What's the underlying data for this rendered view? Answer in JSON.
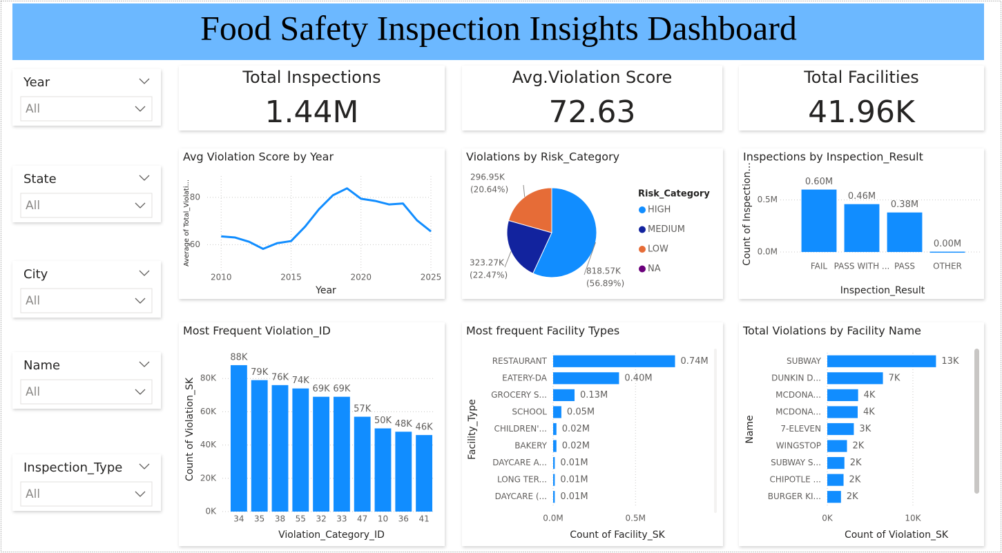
{
  "header": {
    "title": "Food Safety Inspection Insights Dashboard"
  },
  "slicers": [
    {
      "label": "Year",
      "value": "All"
    },
    {
      "label": "State",
      "value": "All"
    },
    {
      "label": "City",
      "value": "All"
    },
    {
      "label": "Name",
      "value": "All"
    },
    {
      "label": "Inspection_Type",
      "value": "All"
    }
  ],
  "kpis": [
    {
      "title": "Total Inspections",
      "value": "1.44M"
    },
    {
      "title": "Avg.Violation Score",
      "value": "72.63"
    },
    {
      "title": "Total Facilities",
      "value": "41.96K"
    }
  ],
  "chart_data": [
    {
      "type": "line",
      "title": "Avg Violation Score by Year",
      "x_label": "Year",
      "y_label": "Average of Total_Violati...",
      "x": [
        2010,
        2011,
        2012,
        2013,
        2014,
        2015,
        2016,
        2017,
        2018,
        2019,
        2020,
        2021,
        2022,
        2023,
        2024,
        2025
      ],
      "values": [
        63.5,
        63,
        61.2,
        58.2,
        60.6,
        61.5,
        67.6,
        75,
        80.9,
        83.8,
        79.4,
        78.5,
        77,
        77.4,
        70.3,
        65.6
      ],
      "color": "#118DFF",
      "xlim": [
        2009,
        2025
      ],
      "xticks": [
        2010,
        2015,
        2020,
        2025
      ],
      "ylim": [
        49,
        89
      ],
      "yticks": [
        60,
        80
      ],
      "grid": true
    },
    {
      "type": "pie",
      "title": "Violations by Risk_Category",
      "legend_title": "Risk_Category",
      "categories": [
        "HIGH",
        "MEDIUM",
        "LOW",
        "NA"
      ],
      "values": [
        818570,
        323270,
        296950,
        0
      ],
      "value_labels": [
        "818.57K",
        "323.27K",
        "296.95K",
        null
      ],
      "percents": [
        56.89,
        22.47,
        20.64,
        0
      ],
      "percent_labels": [
        "(56.89%)",
        "(22.47%)",
        "(20.64%)",
        null
      ],
      "colors": [
        "#118DFF",
        "#12239E",
        "#E66C37",
        "#6B007B"
      ],
      "legend": "right"
    },
    {
      "type": "bar",
      "title": "Inspections by Inspection_Result",
      "x_label": "Inspection_Result",
      "y_label": "Count of Inspection...",
      "categories": [
        "FAIL",
        "PASS WITH ...",
        "PASS",
        "OTHER"
      ],
      "values": [
        600000,
        460000,
        380000,
        3000
      ],
      "value_labels": [
        "0.60M",
        "0.46M",
        "0.38M",
        "0.00M"
      ],
      "color": "#118DFF",
      "ylim": [
        0,
        730000
      ],
      "yticks": [
        {
          "value": 0,
          "label": "0.0M"
        },
        {
          "value": 500000,
          "label": "0.5M"
        }
      ],
      "grid": true
    },
    {
      "type": "bar",
      "title": "Most Frequent Violation_ID",
      "x_label": "Violation_Category_ID",
      "y_label": "Count of Violation_SK",
      "categories": [
        "34",
        "35",
        "38",
        "55",
        "32",
        "33",
        "47",
        "10",
        "36",
        "41"
      ],
      "values": [
        88000,
        79000,
        76000,
        74000,
        69000,
        69000,
        57000,
        50000,
        48000,
        46000
      ],
      "value_labels": [
        "88K",
        "79K",
        "76K",
        "74K",
        "69K",
        "69K",
        "57K",
        "50K",
        "48K",
        "46K"
      ],
      "color": "#118DFF",
      "ylim": [
        0,
        100000
      ],
      "yticks": [
        {
          "value": 0,
          "label": "0K"
        },
        {
          "value": 20000,
          "label": "20K"
        },
        {
          "value": 40000,
          "label": "40K"
        },
        {
          "value": 60000,
          "label": "60K"
        },
        {
          "value": 80000,
          "label": "80K"
        }
      ],
      "grid": true
    },
    {
      "type": "barh",
      "title": "Most frequent Facility Types",
      "x_label": "Count of Facility_SK",
      "y_label": "Facility_Type",
      "categories": [
        "RESTAURANT",
        "EATERY-DA",
        "GROCERY S...",
        "SCHOOL",
        "CHILDREN'...",
        "BAKERY",
        "DAYCARE A...",
        "LONG TER...",
        "DAYCARE (..."
      ],
      "values": [
        740000,
        400000,
        130000,
        50000,
        20000,
        20000,
        10000,
        10000,
        10000
      ],
      "value_labels": [
        "0.74M",
        "0.40M",
        "0.13M",
        "0.05M",
        "0.02M",
        "0.02M",
        "0.01M",
        "0.01M",
        "0.01M"
      ],
      "color": "#118DFF",
      "xlim": [
        0,
        960000
      ],
      "xticks": [
        {
          "value": 0,
          "label": "0.0M"
        },
        {
          "value": 500000,
          "label": "0.5M"
        }
      ],
      "grid": true
    },
    {
      "type": "barh",
      "title": "Total Violations by Facility Name",
      "x_label": "Count of Violation_SK",
      "y_label": "Name",
      "categories": [
        "SUBWAY",
        "DUNKIN D...",
        "MCDONA...",
        "MCDONA...",
        "7-ELEVEN",
        "WINGSTOP",
        "SUBWAY S...",
        "CHIPOTLE ...",
        "BURGER KI..."
      ],
      "values": [
        12700,
        6500,
        3600,
        3550,
        3100,
        2300,
        2000,
        1900,
        1600
      ],
      "value_labels": [
        "13K",
        "7K",
        "4K",
        "4K",
        "3K",
        "2K",
        "2K",
        "2K",
        "2K"
      ],
      "color": "#118DFF",
      "xlim": [
        0,
        16700
      ],
      "xticks": [
        {
          "value": 0,
          "label": "0K"
        },
        {
          "value": 10000,
          "label": "10K"
        }
      ],
      "grid": true
    }
  ]
}
